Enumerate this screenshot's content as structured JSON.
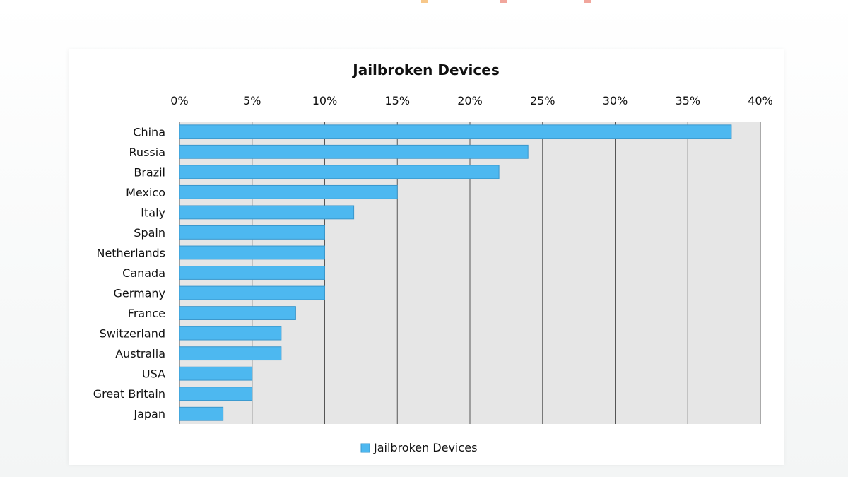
{
  "chart_data": {
    "type": "bar",
    "orientation": "horizontal",
    "title": "Jailbroken Devices",
    "categories": [
      "China",
      "Russia",
      "Brazil",
      "Mexico",
      "Italy",
      "Spain",
      "Netherlands",
      "Canada",
      "Germany",
      "France",
      "Switzerland",
      "Australia",
      "USA",
      "Great Britain",
      "Japan"
    ],
    "series": [
      {
        "name": "Jailbroken Devices",
        "values": [
          38,
          24,
          22,
          15,
          12,
          10,
          10,
          10,
          10,
          8,
          7,
          7,
          5,
          5,
          3
        ]
      }
    ],
    "x_ticks": [
      "0%",
      "5%",
      "10%",
      "15%",
      "20%",
      "25%",
      "30%",
      "35%",
      "40%"
    ],
    "xlim": [
      0,
      40
    ],
    "x_axis_position": "top",
    "grid": true,
    "legend": "bottom",
    "colors": {
      "bar": "#4db8f0",
      "bar_border": "#3a97cc",
      "plot_bg": "#e6e6e6",
      "grid": "#555555"
    }
  }
}
